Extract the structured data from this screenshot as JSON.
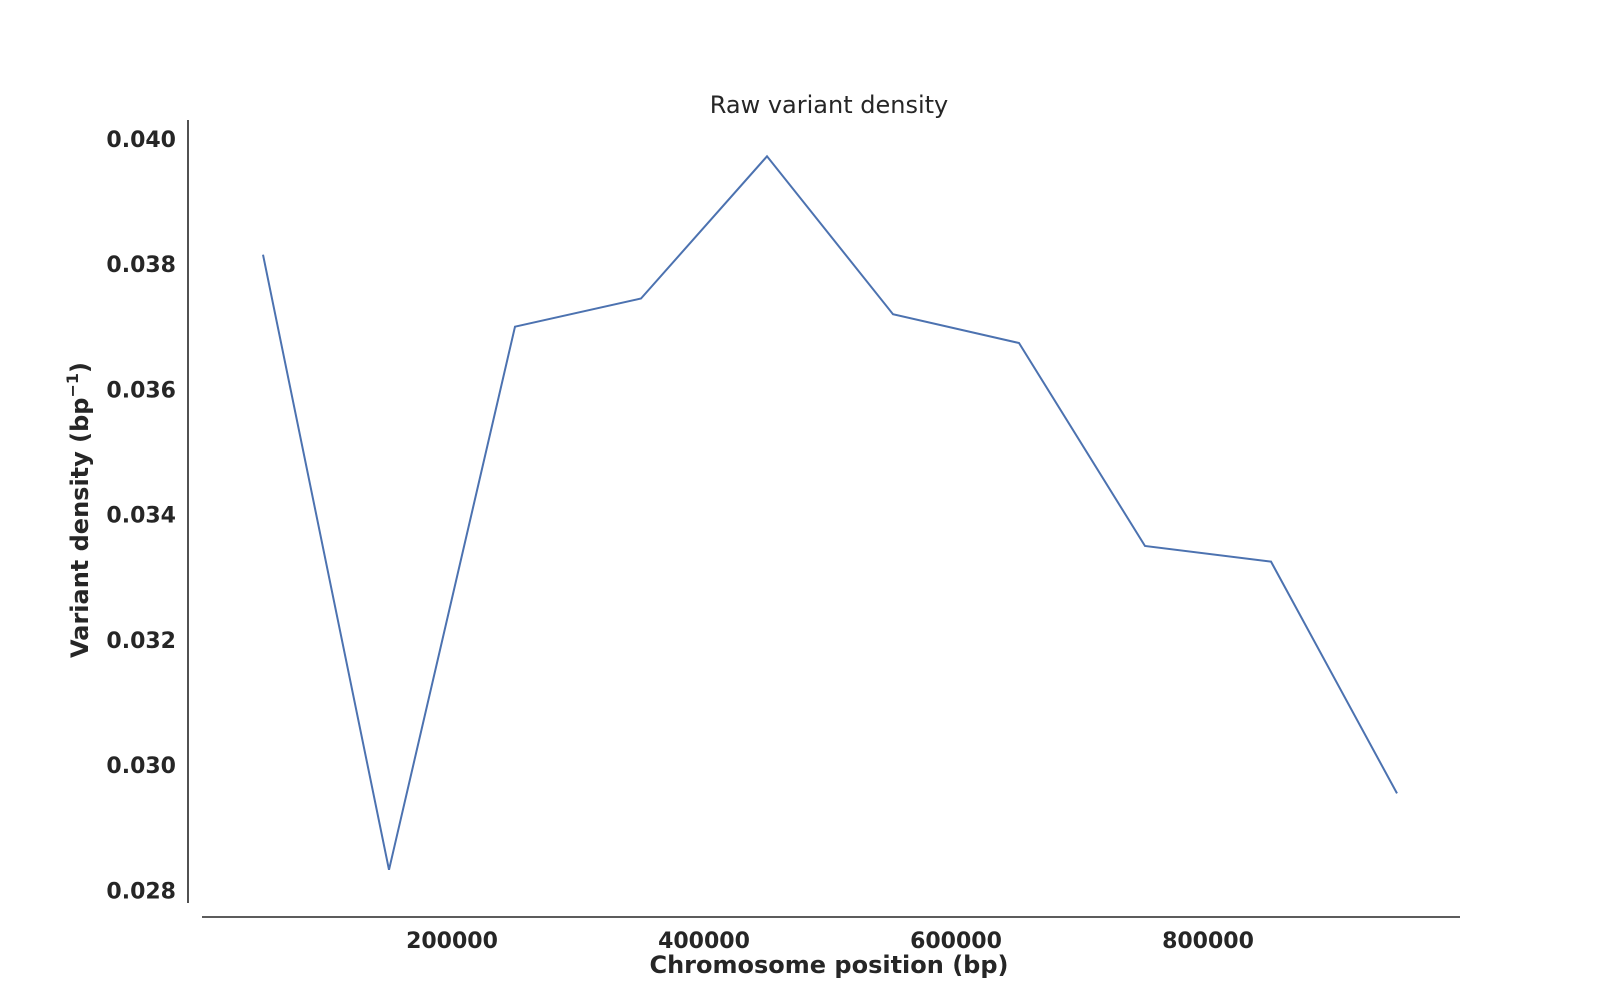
{
  "chart_data": {
    "type": "line",
    "title": "Raw variant density",
    "xlabel": "Chromosome position (bp)",
    "ylabel": "Variant density (bp",
    "ylabel_superscript": "−1",
    "ylabel_suffix": ")",
    "xlim": [
      0,
      1000000
    ],
    "ylim": [
      0.0278,
      0.0403
    ],
    "x_ticks": [
      200000,
      400000,
      600000,
      800000
    ],
    "x_tick_labels": [
      "200000",
      "400000",
      "600000",
      "800000"
    ],
    "y_ticks": [
      0.028,
      0.03,
      0.032,
      0.034,
      0.036,
      0.038,
      0.04
    ],
    "y_tick_labels": [
      "0.028",
      "0.030",
      "0.032",
      "0.034",
      "0.036",
      "0.038",
      "0.040"
    ],
    "grid": false,
    "series": [
      {
        "color": "#4c72b0",
        "x": [
          50000,
          150000,
          250000,
          350000,
          450000,
          550000,
          650000,
          750000,
          850000,
          950000
        ],
        "y": [
          0.03815,
          0.02833,
          0.037,
          0.03745,
          0.03972,
          0.0372,
          0.03674,
          0.0335,
          0.03325,
          0.02955
        ]
      }
    ]
  }
}
